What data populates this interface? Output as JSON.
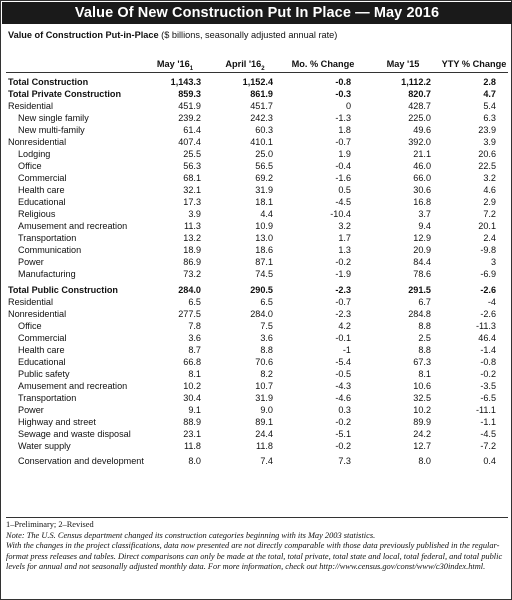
{
  "title": "Value Of New Construction Put In Place — May 2016",
  "subtitle": {
    "bold": "Value of Construction Put-in-Place",
    "rest": " ($ billions, seasonally adjusted annual rate)"
  },
  "columns": [
    "May '16",
    "April '16",
    "Mo. % Change",
    "May '15",
    "YTY % Change"
  ],
  "column_superscripts": [
    "1",
    "2",
    "",
    "",
    ""
  ],
  "rows": [
    {
      "label": "Total Construction",
      "indent": 0,
      "bold": true,
      "values": [
        "1,143.3",
        "1,152.4",
        "-0.8",
        "1,112.2",
        "2.8"
      ]
    },
    {
      "label": "Total Private Construction",
      "indent": 0,
      "bold": true,
      "values": [
        "859.3",
        "861.9",
        "-0.3",
        "820.7",
        "4.7"
      ]
    },
    {
      "label": "Residential",
      "indent": 0,
      "bold": false,
      "values": [
        "451.9",
        "451.7",
        "0",
        "428.7",
        "5.4"
      ]
    },
    {
      "label": "New single family",
      "indent": 1,
      "bold": false,
      "values": [
        "239.2",
        "242.3",
        "-1.3",
        "225.0",
        "6.3"
      ]
    },
    {
      "label": "New multi-family",
      "indent": 1,
      "bold": false,
      "values": [
        "61.4",
        "60.3",
        "1.8",
        "49.6",
        "23.9"
      ]
    },
    {
      "label": "Nonresidential",
      "indent": 0,
      "bold": false,
      "values": [
        "407.4",
        "410.1",
        "-0.7",
        "392.0",
        "3.9"
      ]
    },
    {
      "label": "Lodging",
      "indent": 1,
      "bold": false,
      "values": [
        "25.5",
        "25.0",
        "1.9",
        "21.1",
        "20.6"
      ]
    },
    {
      "label": "Office",
      "indent": 1,
      "bold": false,
      "values": [
        "56.3",
        "56.5",
        "-0.4",
        "46.0",
        "22.5"
      ]
    },
    {
      "label": "Commercial",
      "indent": 1,
      "bold": false,
      "values": [
        "68.1",
        "69.2",
        "-1.6",
        "66.0",
        "3.2"
      ]
    },
    {
      "label": "Health care",
      "indent": 1,
      "bold": false,
      "values": [
        "32.1",
        "31.9",
        "0.5",
        "30.6",
        "4.6"
      ]
    },
    {
      "label": "Educational",
      "indent": 1,
      "bold": false,
      "values": [
        "17.3",
        "18.1",
        "-4.5",
        "16.8",
        "2.9"
      ]
    },
    {
      "label": "Religious",
      "indent": 1,
      "bold": false,
      "values": [
        "3.9",
        "4.4",
        "-10.4",
        "3.7",
        "7.2"
      ]
    },
    {
      "label": "Amusement and recreation",
      "indent": 1,
      "bold": false,
      "values": [
        "11.3",
        "10.9",
        "3.2",
        "9.4",
        "20.1"
      ]
    },
    {
      "label": "Transportation",
      "indent": 1,
      "bold": false,
      "values": [
        "13.2",
        "13.0",
        "1.7",
        "12.9",
        "2.4"
      ]
    },
    {
      "label": "Communication",
      "indent": 1,
      "bold": false,
      "values": [
        "18.9",
        "18.6",
        "1.3",
        "20.9",
        "-9.8"
      ]
    },
    {
      "label": "Power",
      "indent": 1,
      "bold": false,
      "values": [
        "86.9",
        "87.1",
        "-0.2",
        "84.4",
        "3"
      ]
    },
    {
      "label": "Manufacturing",
      "indent": 1,
      "bold": false,
      "values": [
        "73.2",
        "74.5",
        "-1.9",
        "78.6",
        "-6.9"
      ]
    },
    {
      "label": "Total Public Construction",
      "indent": 0,
      "bold": true,
      "values": [
        "284.0",
        "290.5",
        "-2.3",
        "291.5",
        "-2.6"
      ]
    },
    {
      "label": "Residential",
      "indent": 0,
      "bold": false,
      "values": [
        "6.5",
        "6.5",
        "-0.7",
        "6.7",
        "-4"
      ]
    },
    {
      "label": "Nonresidential",
      "indent": 0,
      "bold": false,
      "values": [
        "277.5",
        "284.0",
        "-2.3",
        "284.8",
        "-2.6"
      ]
    },
    {
      "label": "Office",
      "indent": 1,
      "bold": false,
      "values": [
        "7.8",
        "7.5",
        "4.2",
        "8.8",
        "-11.3"
      ]
    },
    {
      "label": "Commercial",
      "indent": 1,
      "bold": false,
      "values": [
        "3.6",
        "3.6",
        "-0.1",
        "2.5",
        "46.4"
      ]
    },
    {
      "label": "Health care",
      "indent": 1,
      "bold": false,
      "values": [
        "8.7",
        "8.8",
        "-1",
        "8.8",
        "-1.4"
      ]
    },
    {
      "label": "Educational",
      "indent": 1,
      "bold": false,
      "values": [
        "66.8",
        "70.6",
        "-5.4",
        "67.3",
        "-0.8"
      ]
    },
    {
      "label": "Public safety",
      "indent": 1,
      "bold": false,
      "values": [
        "8.1",
        "8.2",
        "-0.5",
        "8.1",
        "-0.2"
      ]
    },
    {
      "label": "Amusement and recreation",
      "indent": 1,
      "bold": false,
      "values": [
        "10.2",
        "10.7",
        "-4.3",
        "10.6",
        "-3.5"
      ]
    },
    {
      "label": "Transportation",
      "indent": 1,
      "bold": false,
      "values": [
        "30.4",
        "31.9",
        "-4.6",
        "32.5",
        "-6.5"
      ]
    },
    {
      "label": "Power",
      "indent": 1,
      "bold": false,
      "values": [
        "9.1",
        "9.0",
        "0.3",
        "10.2",
        "-11.1"
      ]
    },
    {
      "label": "Highway and street",
      "indent": 1,
      "bold": false,
      "values": [
        "88.9",
        "89.1",
        "-0.2",
        "89.9",
        "-1.1"
      ]
    },
    {
      "label": "Sewage and waste disposal",
      "indent": 1,
      "bold": false,
      "values": [
        "23.1",
        "24.4",
        "-5.1",
        "24.2",
        "-4.5"
      ]
    },
    {
      "label": "Water supply",
      "indent": 1,
      "bold": false,
      "values": [
        "11.8",
        "11.8",
        "-0.2",
        "12.7",
        "-7.2"
      ]
    },
    {
      "label": "Conservation and development",
      "indent": 1,
      "bold": false,
      "values": [
        "8.0",
        "7.4",
        "7.3",
        "8.0",
        "0.4"
      ]
    }
  ],
  "footnotes": {
    "legend": "1–Preliminary; 2–Revised",
    "note1": "Note: The U.S. Census department changed its construction categories beginning with its May 2003 statistics.",
    "note2": "With the changes in the project classifications, data now presented are not directly comparable with those data previously published in the regular-format press releases and tables. Direct comparisons can only be made at the total, total private, total state and local, total federal, and total public levels for annual and not seasonally adjusted monthly data. For more information, check out http://www.census.gov/const/www/c30index.html."
  }
}
